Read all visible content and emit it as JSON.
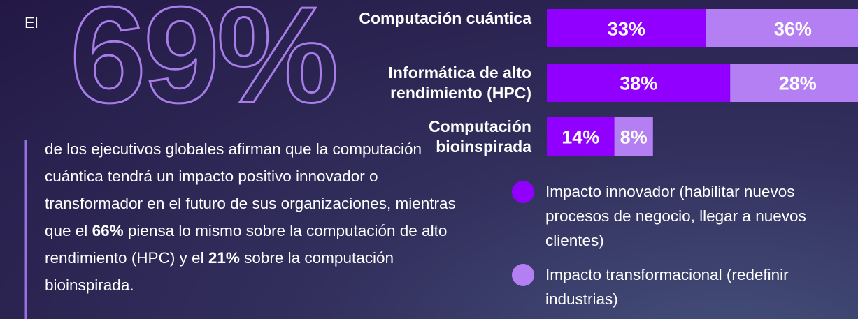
{
  "intro": "El",
  "big_number": "69%",
  "paragraph": [
    "de los ejecutivos globales afirman que la computación cuántica tendrá un impacto positivo innovador o transformador en el futuro de sus organizaciones, mientras que el ",
    "66%",
    " piensa lo mismo sobre la computación de alto rendimiento (HPC) y el ",
    "21%",
    " sobre la computación bioinspirada."
  ],
  "chart_data": {
    "type": "stacked_bar_horizontal",
    "categories": [
      "Computación cuántica",
      "Informática de alto rendimiento (HPC)",
      "Computación bioinspirada"
    ],
    "series": [
      {
        "name": "Impacto innovador (habilitar nuevos procesos de negocio, llegar a nuevos clientes)",
        "color": "#9100ff",
        "values": [
          33,
          38,
          14
        ],
        "value_labels": [
          "33%",
          "38%",
          "14%"
        ]
      },
      {
        "name": "Impacto transformacional (redefinir industrias)",
        "color": "#b47ff2",
        "values": [
          36,
          28,
          8
        ],
        "value_labels": [
          "36%",
          "28%",
          "8%"
        ]
      }
    ]
  }
}
